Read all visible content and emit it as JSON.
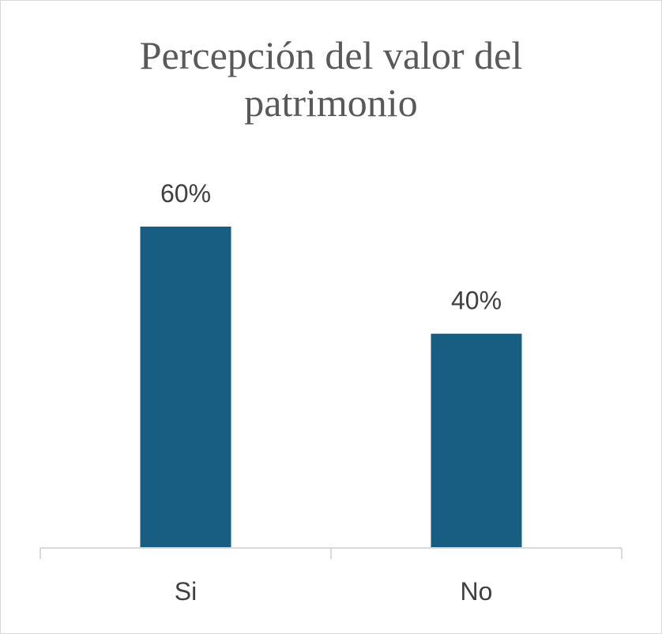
{
  "chart_data": {
    "type": "bar",
    "title_lines": [
      "Percepción del valor del",
      "patrimonio"
    ],
    "categories": [
      "Si",
      "No"
    ],
    "values": [
      60,
      40
    ],
    "value_labels": [
      "60%",
      "40%"
    ],
    "xlabel": "",
    "ylabel": "",
    "ylim": [
      0,
      60
    ],
    "grid": false,
    "legend": "none",
    "bar_color": "#175E82",
    "axis_color": "#d9d9d9",
    "text_color": "#404040",
    "title_color": "#595959"
  }
}
